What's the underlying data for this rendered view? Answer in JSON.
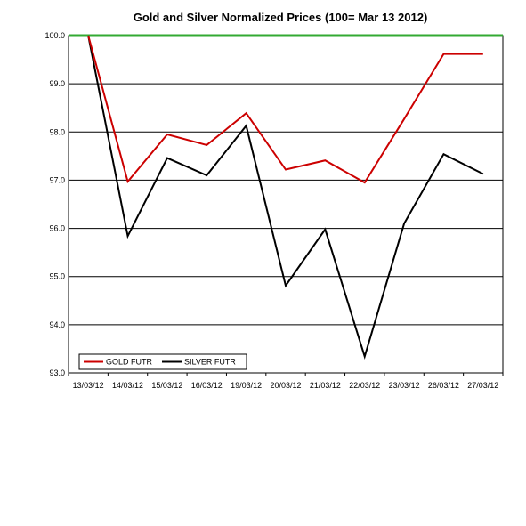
{
  "chart_data": {
    "type": "line",
    "title": "Gold and Silver Normalized Prices  (100= Mar 13 2012)",
    "xlabel": "",
    "ylabel": "",
    "categories": [
      "13/03/12",
      "14/03/12",
      "15/03/12",
      "16/03/12",
      "19/03/12",
      "20/03/12",
      "21/03/12",
      "22/03/12",
      "23/03/12",
      "26/03/12",
      "27/03/12"
    ],
    "ylim": [
      93.0,
      100.0
    ],
    "yticks": [
      "93.0",
      "94.0",
      "95.0",
      "96.0",
      "97.0",
      "98.0",
      "99.0",
      "100.0"
    ],
    "grid": true,
    "legend_position": "bottom-left",
    "reference_line": {
      "value": 100.0,
      "color": "#33AA33"
    },
    "series": [
      {
        "name": "GOLD  FUTR",
        "color": "#CC0000",
        "values": [
          100.0,
          96.97,
          97.95,
          97.73,
          98.39,
          97.22,
          97.41,
          96.95,
          98.27,
          99.62,
          99.62
        ]
      },
      {
        "name": "SILVER  FUTR",
        "color": "#000000",
        "values": [
          100.0,
          95.84,
          97.46,
          97.1,
          98.13,
          94.81,
          95.98,
          93.34,
          96.1,
          97.54,
          97.13
        ]
      }
    ]
  }
}
